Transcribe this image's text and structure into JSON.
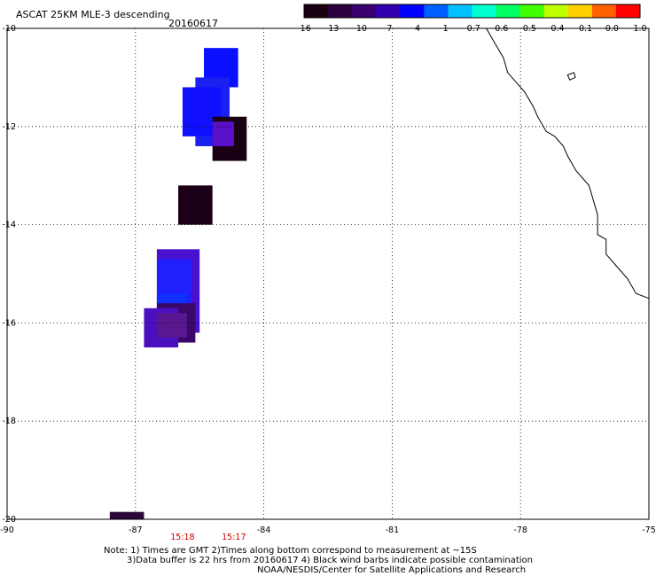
{
  "header": {
    "title": "ASCAT 25KM MLE-3 descending",
    "date": "20160617"
  },
  "colorbar": {
    "labels": [
      "-16",
      "-13",
      "-10",
      "-7",
      "-4",
      "-1",
      "-0.7",
      "-0.6",
      "-0.5",
      "-0.4",
      "-0.1",
      "0.0",
      "1.0"
    ],
    "colors": [
      "#1a0010",
      "#2c0040",
      "#3a0070",
      "#3300b0",
      "#0000ff",
      "#0060ff",
      "#00c0ff",
      "#00ffd0",
      "#00ff60",
      "#40ff00",
      "#c0ff00",
      "#ffd000",
      "#ff6000",
      "#ff0000"
    ]
  },
  "map": {
    "lon_range": [
      -90,
      -75
    ],
    "lat_range": [
      -20,
      -10
    ],
    "lon_ticks": [
      "-90",
      "-87",
      "-84",
      "-81",
      "-78",
      "-75"
    ],
    "lat_ticks": [
      "-10",
      "-12",
      "-14",
      "-16",
      "-18",
      "-20"
    ],
    "grid": "dotted",
    "time_labels": [
      {
        "text": "15:18",
        "lon": -85.9
      },
      {
        "text": "15:17",
        "lon": -84.7
      }
    ],
    "time_color": "#cc0000",
    "cells": [
      {
        "lon0": -85.4,
        "lon1": -84.6,
        "lat0": -10.4,
        "lat1": -11.2,
        "color": "#0a10ff"
      },
      {
        "lon0": -85.6,
        "lon1": -84.8,
        "lat0": -11.0,
        "lat1": -12.4,
        "color": "#1a20f0"
      },
      {
        "lon0": -85.9,
        "lon1": -85.0,
        "lat0": -11.2,
        "lat1": -12.2,
        "color": "#1010ff"
      },
      {
        "lon0": -85.2,
        "lon1": -84.4,
        "lat0": -11.8,
        "lat1": -12.7,
        "color": "#1a0015"
      },
      {
        "lon0": -85.2,
        "lon1": -84.7,
        "lat0": -11.9,
        "lat1": -12.4,
        "color": "#5a10c8"
      },
      {
        "lon0": -86.0,
        "lon1": -85.2,
        "lat0": -13.2,
        "lat1": -14.0,
        "color": "#1c0018"
      },
      {
        "lon0": -86.5,
        "lon1": -85.5,
        "lat0": -14.5,
        "lat1": -16.2,
        "color": "#4a10d0"
      },
      {
        "lon0": -86.5,
        "lon1": -85.7,
        "lat0": -14.7,
        "lat1": -15.7,
        "color": "#2020ff"
      },
      {
        "lon0": -86.5,
        "lon1": -85.8,
        "lat0": -15.4,
        "lat1": -15.6,
        "color": "#1030ff"
      },
      {
        "lon0": -86.5,
        "lon1": -85.6,
        "lat0": -15.6,
        "lat1": -16.4,
        "color": "#3a0868"
      },
      {
        "lon0": -86.8,
        "lon1": -86.0,
        "lat0": -15.7,
        "lat1": -16.5,
        "color": "#4a10c0"
      },
      {
        "lon0": -86.5,
        "lon1": -85.8,
        "lat0": -15.8,
        "lat1": -16.3,
        "color": "#5a1890"
      },
      {
        "lon0": -87.6,
        "lon1": -86.8,
        "lat0": -19.85,
        "lat1": -20.0,
        "color": "#2a0838"
      }
    ],
    "coast": [
      [
        -78.8,
        -10.0
      ],
      [
        -78.6,
        -10.3
      ],
      [
        -78.4,
        -10.6
      ],
      [
        -78.3,
        -10.9
      ],
      [
        -78.1,
        -11.1
      ],
      [
        -77.9,
        -11.3
      ],
      [
        -77.7,
        -11.6
      ],
      [
        -77.6,
        -11.8
      ],
      [
        -77.4,
        -12.1
      ],
      [
        -77.2,
        -12.2
      ],
      [
        -77.0,
        -12.4
      ],
      [
        -76.9,
        -12.6
      ],
      [
        -76.7,
        -12.9
      ],
      [
        -76.4,
        -13.2
      ],
      [
        -76.3,
        -13.5
      ],
      [
        -76.2,
        -13.8
      ],
      [
        -76.2,
        -14.2
      ],
      [
        -76.0,
        -14.3
      ],
      [
        -76.0,
        -14.6
      ],
      [
        -75.7,
        -14.9
      ],
      [
        -75.5,
        -15.1
      ],
      [
        -75.3,
        -15.4
      ],
      [
        -75.0,
        -15.5
      ]
    ],
    "island": [
      [
        -76.9,
        -10.95
      ],
      [
        -76.75,
        -10.9
      ],
      [
        -76.72,
        -11.0
      ],
      [
        -76.85,
        -11.05
      ],
      [
        -76.9,
        -10.95
      ]
    ]
  },
  "notes": [
    "Note: 1) Times are GMT 2)Times along bottom correspond to measurement at ~15S",
    "3)Data buffer is 22 hrs from 20160617 4) Black wind barbs indicate possible contamination",
    "NOAA/NESDIS/Center for Satellite Applications and Research"
  ]
}
